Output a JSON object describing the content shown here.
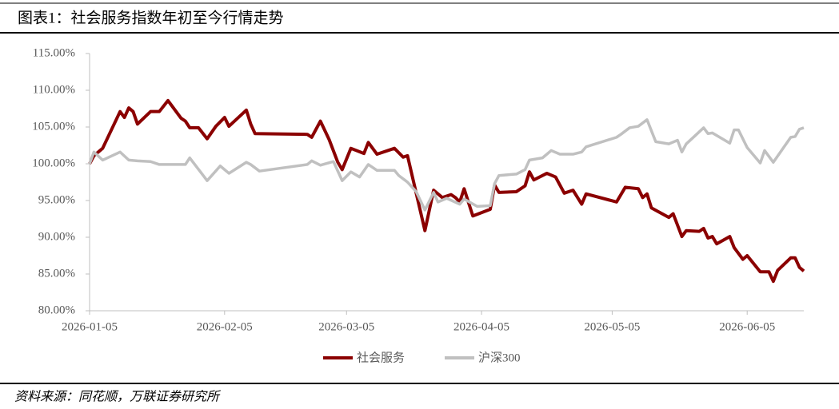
{
  "chart_data": {
    "type": "line",
    "title": "图表1：社会服务指数年初至今行情走势",
    "source": "资料来源：同花顺，万联证券研究所",
    "xlim": [
      "2026-01-05",
      "2026-06-18"
    ],
    "xticks": [
      "2026-01-05",
      "2026-02-05",
      "2026-03-05",
      "2026-04-05",
      "2026-05-05",
      "2026-06-05"
    ],
    "ylim": [
      80,
      115
    ],
    "yticks": [
      {
        "value": 80,
        "label": "80.00%"
      },
      {
        "value": 85,
        "label": "85.00%"
      },
      {
        "value": 90,
        "label": "90.00%"
      },
      {
        "value": 95,
        "label": "95.00%"
      },
      {
        "value": 100,
        "label": "100.00%"
      },
      {
        "value": 105,
        "label": "105.00%"
      },
      {
        "value": 110,
        "label": "110.00%"
      },
      {
        "value": 115,
        "label": "115.00%"
      }
    ],
    "grid": false,
    "legend": "bottom",
    "series": [
      {
        "name": "社会服务",
        "color": "#8b0000",
        "x": [
          "2026-01-05",
          "2026-01-06",
          "2026-01-08",
          "2026-01-12",
          "2026-01-13",
          "2026-01-14",
          "2026-01-15",
          "2026-01-16",
          "2026-01-19",
          "2026-01-21",
          "2026-01-23",
          "2026-01-26",
          "2026-01-27",
          "2026-01-28",
          "2026-01-30",
          "2026-02-01",
          "2026-02-03",
          "2026-02-05",
          "2026-02-06",
          "2026-02-08",
          "2026-02-10",
          "2026-02-11",
          "2026-02-12",
          "2026-02-24",
          "2026-02-25",
          "2026-02-27",
          "2026-03-01",
          "2026-03-03",
          "2026-03-04",
          "2026-03-06",
          "2026-03-09",
          "2026-03-10",
          "2026-03-12",
          "2026-03-16",
          "2026-03-18",
          "2026-03-19",
          "2026-03-23",
          "2026-03-25",
          "2026-03-27",
          "2026-03-29",
          "2026-03-30",
          "2026-03-31",
          "2026-04-01",
          "2026-04-03",
          "2026-04-07",
          "2026-04-08",
          "2026-04-09",
          "2026-04-13",
          "2026-04-15",
          "2026-04-16",
          "2026-04-17",
          "2026-04-20",
          "2026-04-22",
          "2026-04-24",
          "2026-04-26",
          "2026-04-28",
          "2026-04-29",
          "2026-05-06",
          "2026-05-08",
          "2026-05-11",
          "2026-05-12",
          "2026-05-13",
          "2026-05-14",
          "2026-05-18",
          "2026-05-19",
          "2026-05-21",
          "2026-05-22",
          "2026-05-25",
          "2026-05-26",
          "2026-05-27",
          "2026-05-28",
          "2026-05-29",
          "2026-06-01",
          "2026-06-02",
          "2026-06-04",
          "2026-06-05",
          "2026-06-08",
          "2026-06-10",
          "2026-06-11",
          "2026-06-12",
          "2026-06-15",
          "2026-06-16",
          "2026-06-17",
          "2026-06-18"
        ],
        "values": [
          100.0,
          101.1,
          102.1,
          107.1,
          106.3,
          107.6,
          107.1,
          105.4,
          107.1,
          107.1,
          108.6,
          106.2,
          105.8,
          104.9,
          104.9,
          103.4,
          105.1,
          106.3,
          105.1,
          106.2,
          107.3,
          105.4,
          104.1,
          104.0,
          103.6,
          105.8,
          103.3,
          100.2,
          99.2,
          102.1,
          101.4,
          102.9,
          101.3,
          102.1,
          100.9,
          101.1,
          90.9,
          96.4,
          95.4,
          95.8,
          95.4,
          94.8,
          96.6,
          92.9,
          93.8,
          97.1,
          96.1,
          96.2,
          97.0,
          98.9,
          97.8,
          98.7,
          98.2,
          96.0,
          96.4,
          94.5,
          95.9,
          94.8,
          96.8,
          96.6,
          95.4,
          95.9,
          94.0,
          92.7,
          93.2,
          90.1,
          90.9,
          90.8,
          91.2,
          89.9,
          90.1,
          89.1,
          90.1,
          88.6,
          87.0,
          87.5,
          85.3,
          85.3,
          84.0,
          85.5,
          87.2,
          87.2,
          85.9,
          85.4
        ]
      },
      {
        "name": "沪深300",
        "color": "#c0c0c0",
        "x": [
          "2026-01-05",
          "2026-01-06",
          "2026-01-08",
          "2026-01-12",
          "2026-01-14",
          "2026-01-16",
          "2026-01-19",
          "2026-01-21",
          "2026-01-27",
          "2026-01-28",
          "2026-02-01",
          "2026-02-04",
          "2026-02-06",
          "2026-02-10",
          "2026-02-11",
          "2026-02-13",
          "2026-02-24",
          "2026-02-25",
          "2026-02-27",
          "2026-03-02",
          "2026-03-04",
          "2026-03-06",
          "2026-03-08",
          "2026-03-10",
          "2026-03-12",
          "2026-03-16",
          "2026-03-17",
          "2026-03-19",
          "2026-03-21",
          "2026-03-23",
          "2026-03-25",
          "2026-03-26",
          "2026-03-28",
          "2026-03-31",
          "2026-04-01",
          "2026-04-04",
          "2026-04-07",
          "2026-04-08",
          "2026-04-09",
          "2026-04-13",
          "2026-04-15",
          "2026-04-16",
          "2026-04-19",
          "2026-04-21",
          "2026-04-23",
          "2026-04-26",
          "2026-04-28",
          "2026-04-29",
          "2026-05-06",
          "2026-05-07",
          "2026-05-09",
          "2026-05-11",
          "2026-05-13",
          "2026-05-15",
          "2026-05-18",
          "2026-05-20",
          "2026-05-21",
          "2026-05-22",
          "2026-05-26",
          "2026-05-27",
          "2026-05-28",
          "2026-06-01",
          "2026-06-02",
          "2026-06-03",
          "2026-06-05",
          "2026-06-08",
          "2026-06-09",
          "2026-06-11",
          "2026-06-15",
          "2026-06-16",
          "2026-06-17",
          "2026-06-18"
        ],
        "values": [
          100.0,
          101.6,
          100.5,
          101.6,
          100.5,
          100.4,
          100.3,
          99.9,
          99.9,
          100.8,
          97.7,
          99.7,
          98.7,
          100.2,
          99.9,
          99.0,
          99.9,
          100.4,
          99.8,
          100.3,
          97.7,
          98.9,
          98.2,
          99.9,
          99.1,
          99.1,
          98.4,
          97.5,
          96.2,
          93.7,
          96.1,
          94.8,
          95.3,
          94.5,
          95.2,
          94.2,
          94.3,
          97.3,
          98.4,
          98.6,
          99.2,
          100.5,
          100.8,
          101.8,
          101.3,
          101.3,
          101.6,
          102.3,
          103.6,
          104.0,
          104.9,
          105.1,
          106.0,
          103.0,
          102.7,
          103.2,
          101.6,
          102.7,
          104.9,
          104.1,
          104.2,
          102.8,
          104.6,
          104.6,
          102.2,
          100.1,
          101.8,
          100.2,
          103.6,
          103.7,
          104.7,
          104.9
        ]
      }
    ]
  }
}
